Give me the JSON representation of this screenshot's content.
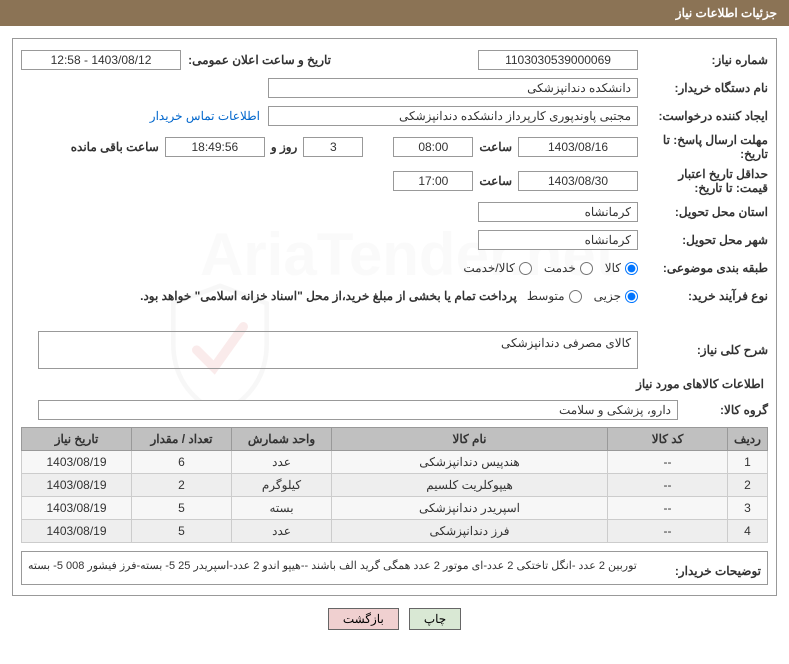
{
  "header_title": "جزئیات اطلاعات نیاز",
  "labels": {
    "need_no": "شماره نیاز:",
    "announce_date": "تاریخ و ساعت اعلان عمومی:",
    "org_name": "نام دستگاه خریدار:",
    "requester": "ایجاد کننده درخواست:",
    "contact_link": "اطلاعات تماس خریدار",
    "reply_deadline": "مهلت ارسال پاسخ: تا تاریخ:",
    "hour": "ساعت",
    "days_and": "روز و",
    "remaining": "ساعت باقی مانده",
    "price_validity": "حداقل تاریخ اعتبار قیمت: تا تاریخ:",
    "delivery_province": "استان محل تحویل:",
    "delivery_city": "شهر محل تحویل:",
    "subject_class": "طبقه بندی موضوعی:",
    "purchase_type": "نوع فرآیند خرید:",
    "payment_note": "پرداخت تمام یا بخشی از مبلغ خرید،از محل \"اسناد خزانه اسلامی\" خواهد بود.",
    "need_desc": "شرح کلی نیاز:",
    "goods_info": "اطلاعات کالاهای مورد نیاز",
    "goods_group": "گروه کالا:",
    "buyer_notes": "توضیحات خریدار:"
  },
  "values": {
    "need_no": "1103030539000069",
    "announce_date": "1403/08/12 - 12:58",
    "org_name": "دانشکده دندانپزشکی",
    "requester": "مجتبی  پاوندپوری کارپرداز دانشکده دندانپزشکی",
    "reply_date": "1403/08/16",
    "reply_hour": "08:00",
    "days": "3",
    "remaining_time": "18:49:56",
    "price_valid_date": "1403/08/30",
    "price_valid_hour": "17:00",
    "province": "کرمانشاه",
    "city": "کرمانشاه",
    "need_desc": "کالای مصرفی دندانپزشکی",
    "goods_group": "دارو، پزشکی و سلامت",
    "buyer_notes": "توربین 2 عدد -انگل تاختکی 2 عدد-ای موتور 2 عدد همگی گرید الف باشند --هیپو اندو 2 عدد-اسپریدر 25 5- بسته-فرز فیشور 008 5- بسته"
  },
  "radios": {
    "subject": [
      {
        "label": "کالا",
        "checked": true
      },
      {
        "label": "خدمت",
        "checked": false
      },
      {
        "label": "کالا/خدمت",
        "checked": false
      }
    ],
    "purchase": [
      {
        "label": "جزیی",
        "checked": true
      },
      {
        "label": "متوسط",
        "checked": false
      }
    ]
  },
  "table": {
    "headers": [
      "ردیف",
      "کد کالا",
      "نام کالا",
      "واحد شمارش",
      "تعداد / مقدار",
      "تاریخ نیاز"
    ],
    "rows": [
      [
        "1",
        "--",
        "هندپیس دندانپزشکی",
        "عدد",
        "6",
        "1403/08/19"
      ],
      [
        "2",
        "--",
        "هیپوکلریت کلسیم",
        "کیلوگرم",
        "2",
        "1403/08/19"
      ],
      [
        "3",
        "--",
        "اسپریدر دندانپزشکی",
        "بسته",
        "5",
        "1403/08/19"
      ],
      [
        "4",
        "--",
        "فرز دندانپزشکی",
        "عدد",
        "5",
        "1403/08/19"
      ]
    ]
  },
  "buttons": {
    "print": "چاپ",
    "back": "بازگشت"
  },
  "watermark": "AriaTender.net"
}
